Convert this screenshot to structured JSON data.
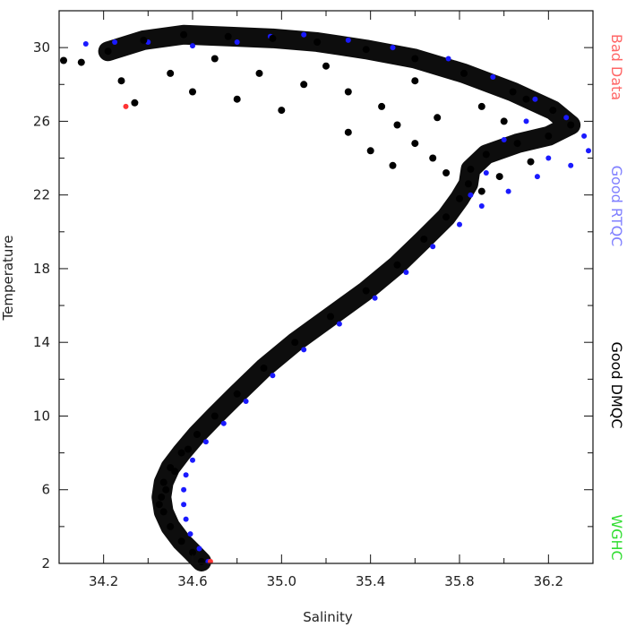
{
  "chart_data": {
    "type": "scatter",
    "title": "",
    "xlabel": "Salinity",
    "ylabel": "Temperature",
    "xlim": [
      34.0,
      36.4
    ],
    "ylim": [
      2,
      32
    ],
    "xticks": [
      34.2,
      34.6,
      35.0,
      35.4,
      35.8,
      36.2
    ],
    "xtick_labels": [
      "34.2",
      "34.6",
      "35.0",
      "35.4",
      "35.8",
      "36.2"
    ],
    "yticks": [
      2,
      6,
      10,
      14,
      18,
      22,
      26,
      30
    ],
    "ytick_labels": [
      "2",
      "6",
      "10",
      "14",
      "18",
      "22",
      "26",
      "30"
    ],
    "grid": false,
    "legend_placement": "right side, vertical text",
    "legend": [
      {
        "label": "Bad Data",
        "color": "#ff6666"
      },
      {
        "label": "Good RTQC",
        "color": "#8080ff"
      },
      {
        "label": "Good DMQC",
        "color": "#000000"
      },
      {
        "label": "WGHC",
        "color": "#33dd33"
      }
    ],
    "series": [
      {
        "name": "Good RTQC",
        "color": "#1a1aff",
        "points": [
          [
            34.67,
            2.1
          ],
          [
            34.63,
            2.8
          ],
          [
            34.59,
            3.6
          ],
          [
            34.57,
            4.4
          ],
          [
            34.56,
            5.2
          ],
          [
            34.56,
            6.0
          ],
          [
            34.57,
            6.8
          ],
          [
            34.6,
            7.6
          ],
          [
            34.66,
            8.6
          ],
          [
            34.74,
            9.6
          ],
          [
            34.84,
            10.8
          ],
          [
            34.96,
            12.2
          ],
          [
            35.1,
            13.6
          ],
          [
            35.26,
            15.0
          ],
          [
            35.42,
            16.4
          ],
          [
            35.56,
            17.8
          ],
          [
            35.68,
            19.2
          ],
          [
            35.8,
            20.4
          ],
          [
            35.9,
            21.4
          ],
          [
            36.02,
            22.2
          ],
          [
            36.15,
            23.0
          ],
          [
            36.3,
            23.6
          ],
          [
            36.38,
            24.4
          ],
          [
            36.36,
            25.2
          ],
          [
            36.28,
            26.2
          ],
          [
            36.14,
            27.2
          ],
          [
            35.95,
            28.4
          ],
          [
            35.75,
            29.4
          ],
          [
            35.5,
            30.0
          ],
          [
            35.3,
            30.4
          ],
          [
            35.1,
            30.7
          ],
          [
            34.95,
            30.6
          ],
          [
            34.8,
            30.3
          ],
          [
            34.6,
            30.1
          ],
          [
            34.4,
            30.3
          ],
          [
            34.25,
            30.3
          ],
          [
            34.12,
            30.2
          ],
          [
            36.0,
            25.0
          ],
          [
            36.2,
            24.0
          ],
          [
            35.92,
            23.2
          ],
          [
            35.85,
            22.0
          ],
          [
            36.1,
            26.0
          ]
        ]
      },
      {
        "name": "Good DMQC",
        "color": "#000000",
        "points": [
          [
            34.64,
            2.1
          ],
          [
            34.6,
            2.6
          ],
          [
            34.55,
            3.2
          ],
          [
            34.5,
            4.0
          ],
          [
            34.47,
            4.8
          ],
          [
            34.46,
            5.6
          ],
          [
            34.47,
            6.4
          ],
          [
            34.5,
            7.2
          ],
          [
            34.55,
            8.0
          ],
          [
            34.62,
            9.0
          ],
          [
            34.7,
            10.0
          ],
          [
            34.8,
            11.2
          ],
          [
            34.92,
            12.6
          ],
          [
            35.06,
            14.0
          ],
          [
            35.22,
            15.4
          ],
          [
            35.38,
            16.8
          ],
          [
            35.52,
            18.2
          ],
          [
            35.64,
            19.6
          ],
          [
            35.74,
            20.8
          ],
          [
            35.8,
            21.8
          ],
          [
            35.84,
            22.6
          ],
          [
            35.85,
            23.4
          ],
          [
            35.92,
            24.2
          ],
          [
            36.06,
            24.8
          ],
          [
            36.2,
            25.2
          ],
          [
            36.3,
            25.8
          ],
          [
            36.22,
            26.6
          ],
          [
            36.04,
            27.6
          ],
          [
            35.82,
            28.6
          ],
          [
            35.6,
            29.4
          ],
          [
            35.38,
            29.9
          ],
          [
            35.16,
            30.3
          ],
          [
            34.96,
            30.5
          ],
          [
            34.76,
            30.6
          ],
          [
            34.56,
            30.7
          ],
          [
            34.38,
            30.4
          ],
          [
            34.22,
            29.8
          ],
          [
            34.1,
            29.2
          ],
          [
            34.02,
            29.3
          ],
          [
            34.28,
            28.2
          ],
          [
            34.34,
            27.0
          ],
          [
            34.5,
            28.6
          ],
          [
            34.7,
            29.4
          ],
          [
            34.9,
            28.6
          ],
          [
            35.1,
            28.0
          ],
          [
            35.3,
            27.6
          ],
          [
            35.45,
            26.8
          ],
          [
            35.52,
            25.8
          ],
          [
            35.6,
            24.8
          ],
          [
            35.68,
            24.0
          ],
          [
            35.74,
            23.2
          ],
          [
            35.9,
            22.2
          ],
          [
            35.98,
            23.0
          ],
          [
            36.12,
            23.8
          ],
          [
            35.7,
            26.2
          ],
          [
            35.9,
            26.8
          ],
          [
            36.1,
            27.2
          ],
          [
            35.3,
            25.4
          ],
          [
            35.4,
            24.4
          ],
          [
            35.5,
            23.6
          ],
          [
            35.0,
            26.6
          ],
          [
            34.8,
            27.2
          ],
          [
            34.6,
            27.6
          ],
          [
            35.6,
            28.2
          ],
          [
            36.0,
            26.0
          ],
          [
            35.2,
            29.0
          ],
          [
            34.45,
            5.2
          ],
          [
            34.48,
            6.0
          ],
          [
            34.52,
            7.0
          ],
          [
            34.58,
            8.2
          ]
        ]
      },
      {
        "name": "Bad Data",
        "color": "#ff3333",
        "points": [
          [
            34.68,
            2.1
          ],
          [
            34.3,
            26.8
          ]
        ]
      }
    ]
  }
}
